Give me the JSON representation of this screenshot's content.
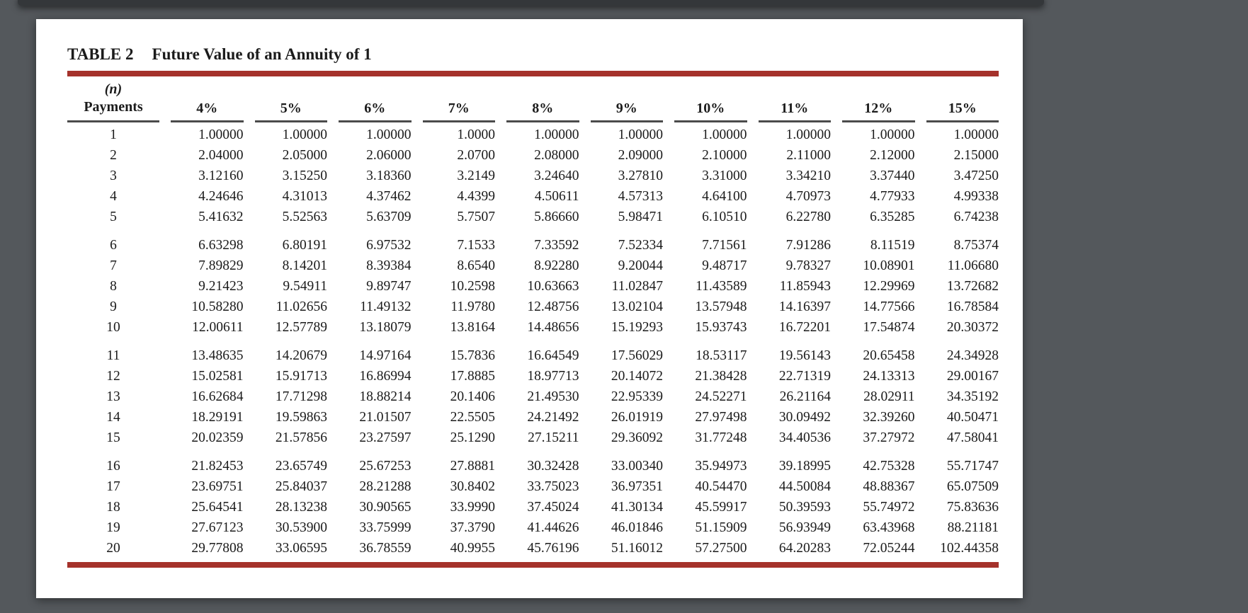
{
  "colors": {
    "accent_red": "#a5322b",
    "viewer_background": "#54585c",
    "top_bar": "#34373a",
    "underline_gray": "#4b4b4b"
  },
  "header": {
    "title_label": "TABLE 2",
    "title_caption": "Future Value of an Annuity of 1"
  },
  "table": {
    "row_header_line1": "(n)",
    "row_header_line2": "Payments",
    "columns": [
      "4%",
      "5%",
      "6%",
      "7%",
      "8%",
      "9%",
      "10%",
      "11%",
      "12%",
      "15%"
    ],
    "rows": [
      {
        "n": "1",
        "values": [
          "1.00000",
          "1.00000",
          "1.00000",
          "1.0000",
          "1.00000",
          "1.00000",
          "1.00000",
          "1.00000",
          "1.00000",
          "1.00000"
        ]
      },
      {
        "n": "2",
        "values": [
          "2.04000",
          "2.05000",
          "2.06000",
          "2.0700",
          "2.08000",
          "2.09000",
          "2.10000",
          "2.11000",
          "2.12000",
          "2.15000"
        ]
      },
      {
        "n": "3",
        "values": [
          "3.12160",
          "3.15250",
          "3.18360",
          "3.2149",
          "3.24640",
          "3.27810",
          "3.31000",
          "3.34210",
          "3.37440",
          "3.47250"
        ]
      },
      {
        "n": "4",
        "values": [
          "4.24646",
          "4.31013",
          "4.37462",
          "4.4399",
          "4.50611",
          "4.57313",
          "4.64100",
          "4.70973",
          "4.77933",
          "4.99338"
        ]
      },
      {
        "n": "5",
        "values": [
          "5.41632",
          "5.52563",
          "5.63709",
          "5.7507",
          "5.86660",
          "5.98471",
          "6.10510",
          "6.22780",
          "6.35285",
          "6.74238"
        ]
      },
      {
        "n": "6",
        "values": [
          "6.63298",
          "6.80191",
          "6.97532",
          "7.1533",
          "7.33592",
          "7.52334",
          "7.71561",
          "7.91286",
          "8.11519",
          "8.75374"
        ]
      },
      {
        "n": "7",
        "values": [
          "7.89829",
          "8.14201",
          "8.39384",
          "8.6540",
          "8.92280",
          "9.20044",
          "9.48717",
          "9.78327",
          "10.08901",
          "11.06680"
        ]
      },
      {
        "n": "8",
        "values": [
          "9.21423",
          "9.54911",
          "9.89747",
          "10.2598",
          "10.63663",
          "11.02847",
          "11.43589",
          "11.85943",
          "12.29969",
          "13.72682"
        ]
      },
      {
        "n": "9",
        "values": [
          "10.58280",
          "11.02656",
          "11.49132",
          "11.9780",
          "12.48756",
          "13.02104",
          "13.57948",
          "14.16397",
          "14.77566",
          "16.78584"
        ]
      },
      {
        "n": "10",
        "values": [
          "12.00611",
          "12.57789",
          "13.18079",
          "13.8164",
          "14.48656",
          "15.19293",
          "15.93743",
          "16.72201",
          "17.54874",
          "20.30372"
        ]
      },
      {
        "n": "11",
        "values": [
          "13.48635",
          "14.20679",
          "14.97164",
          "15.7836",
          "16.64549",
          "17.56029",
          "18.53117",
          "19.56143",
          "20.65458",
          "24.34928"
        ]
      },
      {
        "n": "12",
        "values": [
          "15.02581",
          "15.91713",
          "16.86994",
          "17.8885",
          "18.97713",
          "20.14072",
          "21.38428",
          "22.71319",
          "24.13313",
          "29.00167"
        ]
      },
      {
        "n": "13",
        "values": [
          "16.62684",
          "17.71298",
          "18.88214",
          "20.1406",
          "21.49530",
          "22.95339",
          "24.52271",
          "26.21164",
          "28.02911",
          "34.35192"
        ]
      },
      {
        "n": "14",
        "values": [
          "18.29191",
          "19.59863",
          "21.01507",
          "22.5505",
          "24.21492",
          "26.01919",
          "27.97498",
          "30.09492",
          "32.39260",
          "40.50471"
        ]
      },
      {
        "n": "15",
        "values": [
          "20.02359",
          "21.57856",
          "23.27597",
          "25.1290",
          "27.15211",
          "29.36092",
          "31.77248",
          "34.40536",
          "37.27972",
          "47.58041"
        ]
      },
      {
        "n": "16",
        "values": [
          "21.82453",
          "23.65749",
          "25.67253",
          "27.8881",
          "30.32428",
          "33.00340",
          "35.94973",
          "39.18995",
          "42.75328",
          "55.71747"
        ]
      },
      {
        "n": "17",
        "values": [
          "23.69751",
          "25.84037",
          "28.21288",
          "30.8402",
          "33.75023",
          "36.97351",
          "40.54470",
          "44.50084",
          "48.88367",
          "65.07509"
        ]
      },
      {
        "n": "18",
        "values": [
          "25.64541",
          "28.13238",
          "30.90565",
          "33.9990",
          "37.45024",
          "41.30134",
          "45.59917",
          "50.39593",
          "55.74972",
          "75.83636"
        ]
      },
      {
        "n": "19",
        "values": [
          "27.67123",
          "30.53900",
          "33.75999",
          "37.3790",
          "41.44626",
          "46.01846",
          "51.15909",
          "56.93949",
          "63.43968",
          "88.21181"
        ]
      },
      {
        "n": "20",
        "values": [
          "29.77808",
          "33.06595",
          "36.78559",
          "40.9955",
          "45.76196",
          "51.16012",
          "57.27500",
          "64.20283",
          "72.05244",
          "102.44358"
        ]
      }
    ]
  }
}
